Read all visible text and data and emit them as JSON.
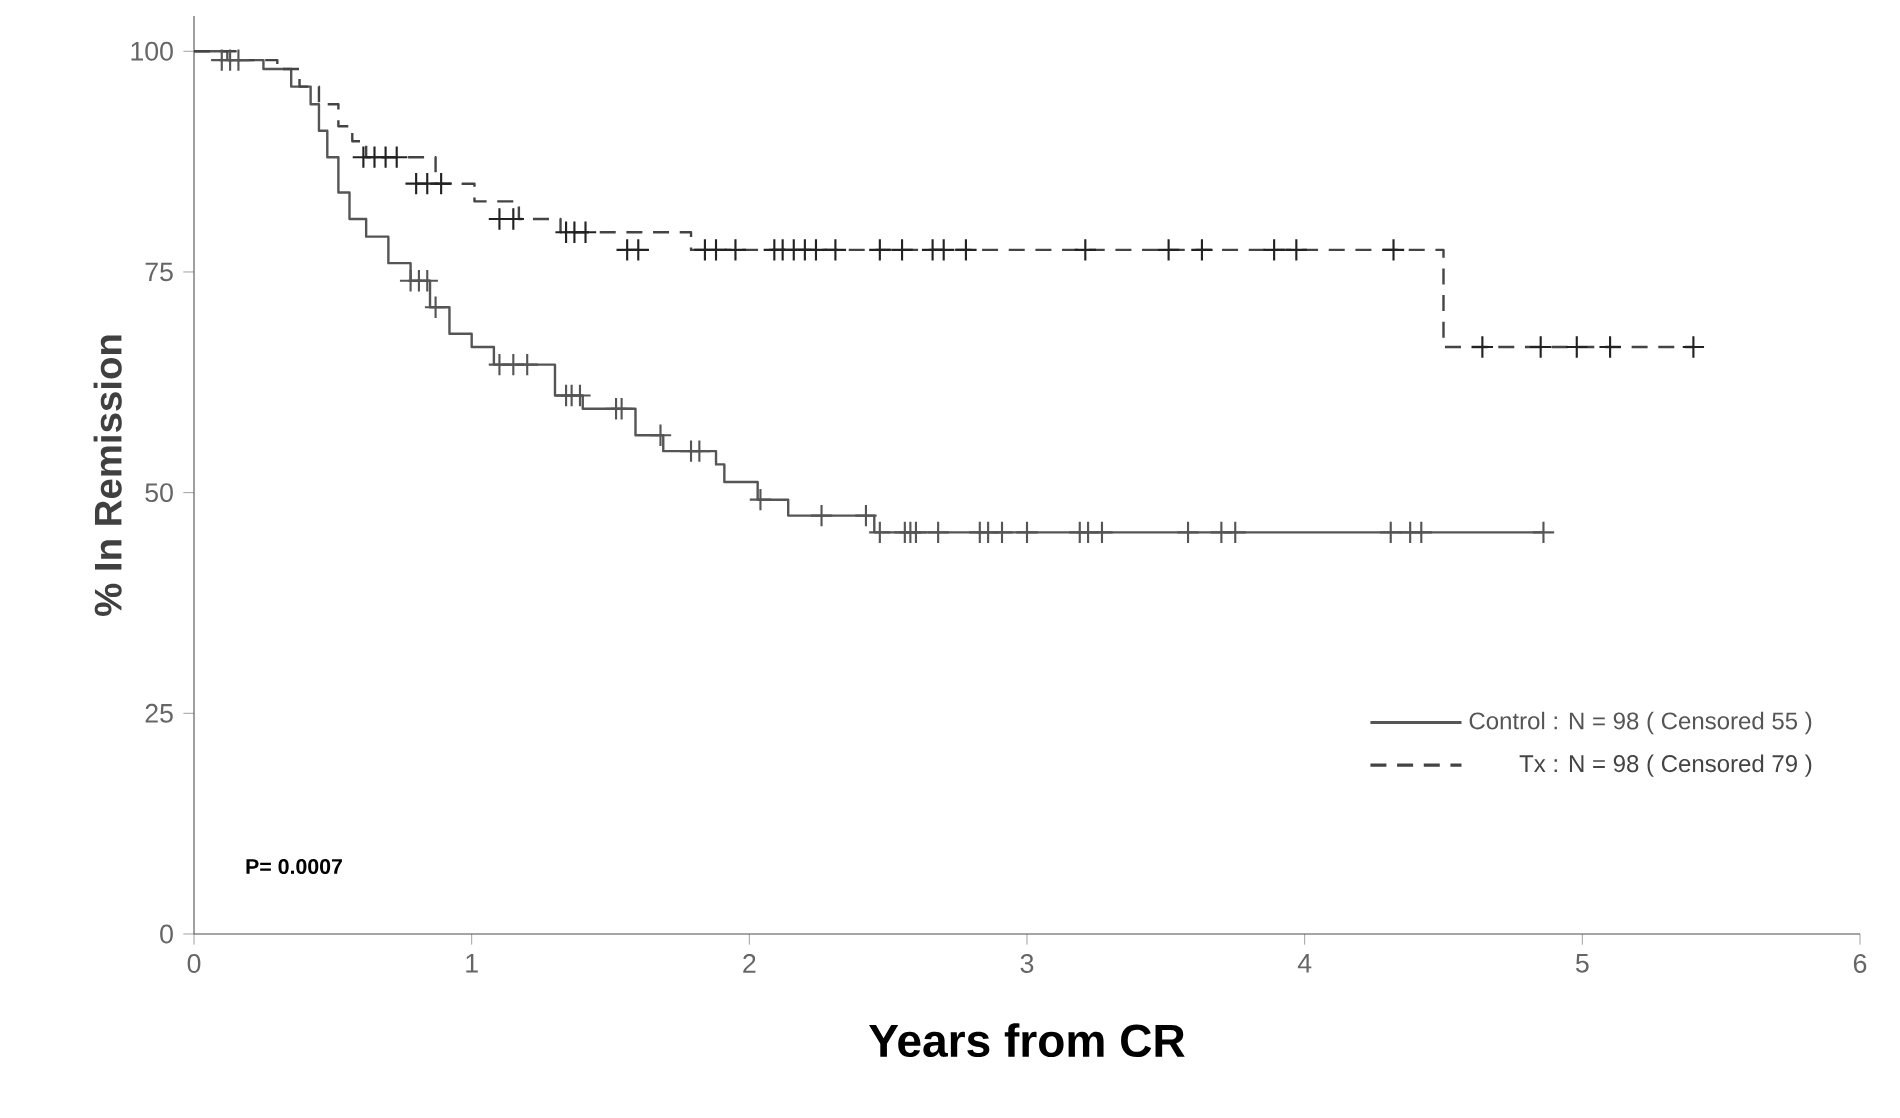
{
  "chart_data": {
    "type": "step",
    "xlabel": "Years from CR",
    "ylabel": "% In Remission",
    "xlim": [
      0,
      6
    ],
    "ylim": [
      0,
      104
    ],
    "xticks": [
      0,
      1,
      2,
      3,
      4,
      5,
      6
    ],
    "yticks": [
      0,
      25,
      50,
      75,
      100
    ],
    "legend": "bottom right",
    "annotations": [
      "P= 0.0007"
    ],
    "series": [
      {
        "name": "Control : N = 98 ( Censored 55 )",
        "line_style": "solid",
        "color": "#555555",
        "x": [
          0,
          0.12,
          0.25,
          0.35,
          0.42,
          0.45,
          0.48,
          0.52,
          0.56,
          0.62,
          0.7,
          0.78,
          0.85,
          0.92,
          1.0,
          1.08,
          1.3,
          1.4,
          1.59,
          1.69,
          1.88,
          1.91,
          2.03,
          2.14,
          2.45,
          4.86
        ],
        "values": [
          100,
          99,
          98,
          96,
          94,
          91,
          88,
          84,
          81,
          79,
          76,
          74,
          71,
          68,
          66.5,
          64.5,
          61,
          59.5,
          56.5,
          54.7,
          53.2,
          51.2,
          49.2,
          47.4,
          45.5,
          45.5
        ]
      },
      {
        "name": "Tx : N = 98 ( Censored 79 )",
        "line_style": "dashed",
        "color": "#444444",
        "x": [
          0,
          0.15,
          0.3,
          0.38,
          0.45,
          0.52,
          0.57,
          0.62,
          0.87,
          1.01,
          1.17,
          1.32,
          1.79,
          4.5,
          5.4
        ],
        "values": [
          100,
          99,
          98,
          96,
          94,
          91.5,
          89.8,
          88,
          85,
          83,
          81,
          79.5,
          77.5,
          66.5,
          66.5
        ]
      },
      {
        "type": "scatter",
        "marker": "cross",
        "color": "#555555",
        "x": [
          0.1,
          0.13,
          0.16,
          0.78,
          0.81,
          0.84,
          0.87,
          1.1,
          1.15,
          1.2,
          1.34,
          1.36,
          1.39,
          1.52,
          1.54,
          1.68,
          1.79,
          1.82,
          2.04,
          2.26,
          2.42,
          2.47,
          2.56,
          2.58,
          2.6,
          2.68,
          2.83,
          2.86,
          2.91,
          3.0,
          3.19,
          3.22,
          3.27,
          3.58,
          3.7,
          3.75,
          4.31,
          4.38,
          4.42,
          4.86
        ],
        "values": [
          99,
          99,
          99,
          74,
          74,
          74,
          71,
          64.5,
          64.5,
          64.5,
          61,
          61,
          61,
          59.5,
          59.5,
          56.5,
          54.7,
          54.7,
          49.2,
          47.4,
          47.4,
          45.5,
          45.5,
          45.5,
          45.5,
          45.5,
          45.5,
          45.5,
          45.5,
          45.5,
          45.5,
          45.5,
          45.5,
          45.5,
          45.5,
          45.5,
          45.5,
          45.5,
          45.5,
          45.5
        ]
      },
      {
        "type": "scatter",
        "marker": "cross",
        "color": "#222222",
        "x": [
          0.61,
          0.65,
          0.69,
          0.73,
          0.8,
          0.84,
          0.89,
          1.1,
          1.15,
          1.34,
          1.37,
          1.41,
          1.56,
          1.6,
          1.84,
          1.88,
          1.95,
          2.09,
          2.12,
          2.16,
          2.2,
          2.24,
          2.31,
          2.47,
          2.55,
          2.66,
          2.7,
          2.78,
          3.21,
          3.51,
          3.63,
          3.89,
          3.97,
          4.32,
          4.64,
          4.85,
          4.98,
          5.1,
          5.4
        ],
        "values": [
          88,
          88,
          88,
          88,
          85,
          85,
          85,
          81,
          81,
          79.5,
          79.5,
          79.5,
          77.5,
          77.5,
          77.5,
          77.5,
          77.5,
          77.5,
          77.5,
          77.5,
          77.5,
          77.5,
          77.5,
          77.5,
          77.5,
          77.5,
          77.5,
          77.5,
          77.5,
          77.5,
          77.5,
          77.5,
          77.5,
          77.5,
          66.5,
          66.5,
          66.5,
          66.5,
          66.5
        ]
      }
    ]
  }
}
